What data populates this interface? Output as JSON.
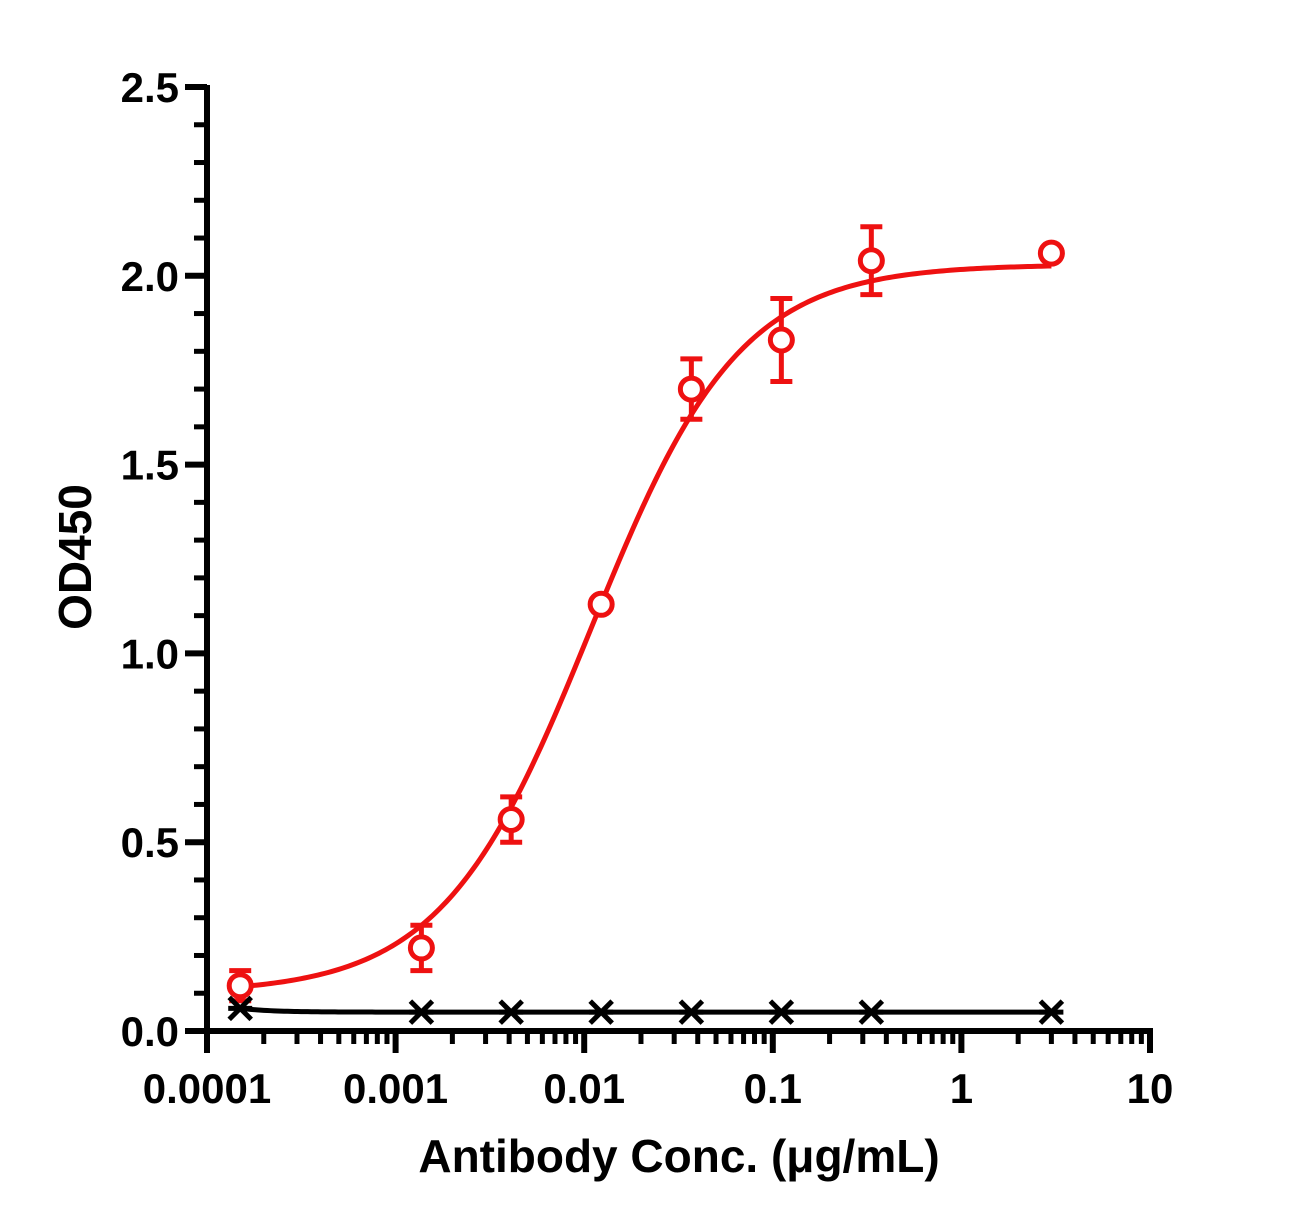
{
  "chart_data": {
    "type": "scatter",
    "title": "",
    "xlabel": "Antibody Conc. (μg/mL)",
    "ylabel": "OD450",
    "x_scale": "log",
    "xlim": [
      0.0001,
      10
    ],
    "ylim": [
      0,
      2.5
    ],
    "x_tick_labels": [
      "0.0001",
      "0.001",
      "0.01",
      "0.1",
      "1",
      "10"
    ],
    "y_tick_labels": [
      "0.0",
      "0.5",
      "1.0",
      "1.5",
      "2.0",
      "2.5"
    ],
    "grid": false,
    "legend": "none",
    "series": [
      {
        "color": "#ee1111",
        "marker": "open-circle",
        "fit": "four-parameter-logistic",
        "points": [
          {
            "x": 0.00015,
            "y": 0.12,
            "err": 0.04
          },
          {
            "x": 0.00137,
            "y": 0.22,
            "err": 0.06
          },
          {
            "x": 0.0041,
            "y": 0.56,
            "err": 0.06
          },
          {
            "x": 0.0123,
            "y": 1.13,
            "err": 0.0
          },
          {
            "x": 0.037,
            "y": 1.7,
            "err": 0.08
          },
          {
            "x": 0.111,
            "y": 1.83,
            "err": 0.11
          },
          {
            "x": 0.333,
            "y": 2.04,
            "err": 0.09
          },
          {
            "x": 3.0,
            "y": 2.06,
            "err": 0.0
          }
        ]
      },
      {
        "color": "#000000",
        "marker": "asterisk",
        "fit": "baseline",
        "points": [
          {
            "x": 0.00015,
            "y": 0.06
          },
          {
            "x": 0.00137,
            "y": 0.05
          },
          {
            "x": 0.0041,
            "y": 0.05
          },
          {
            "x": 0.0123,
            "y": 0.05
          },
          {
            "x": 0.037,
            "y": 0.05
          },
          {
            "x": 0.111,
            "y": 0.05
          },
          {
            "x": 0.333,
            "y": 0.05
          },
          {
            "x": 3.0,
            "y": 0.05
          }
        ]
      }
    ]
  }
}
